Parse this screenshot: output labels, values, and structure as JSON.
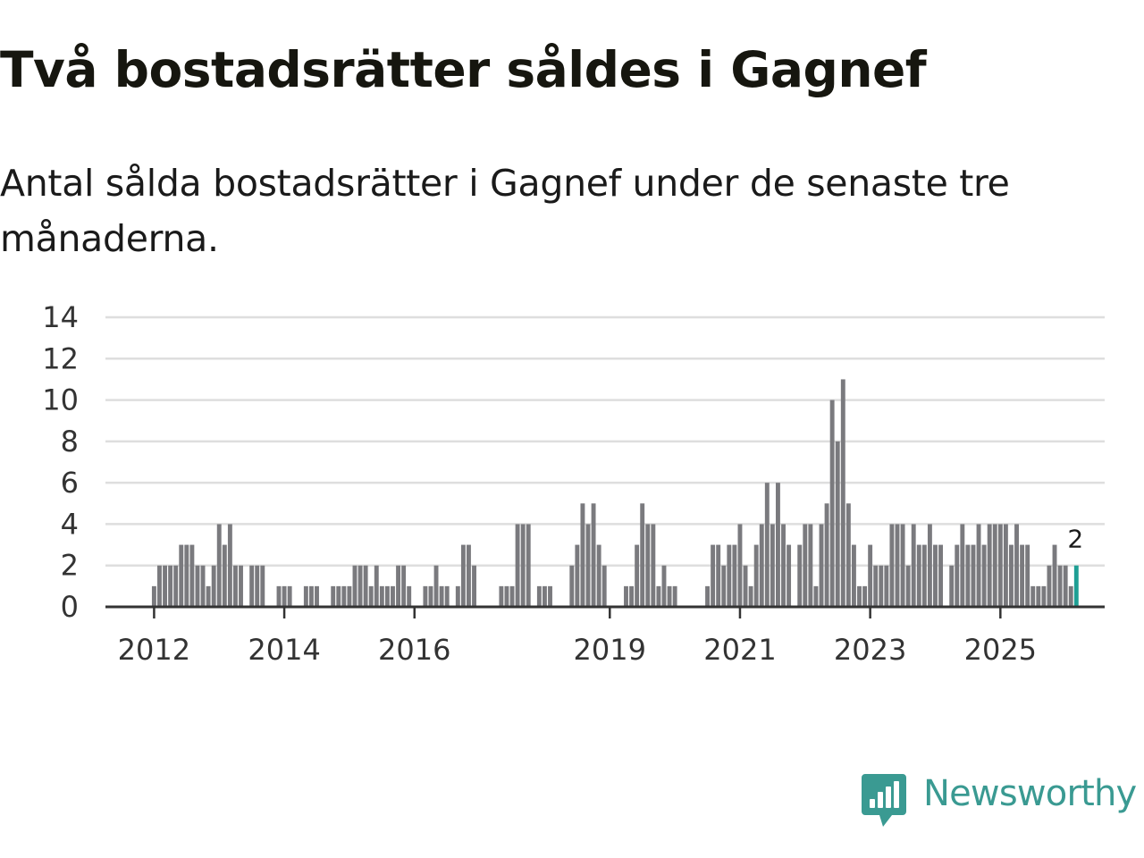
{
  "header": {
    "title": "Två bostadsrätter såldes i Gagnef",
    "subtitle": "Antal sålda bostadsrätter i Gagnef under de senaste tre månaderna."
  },
  "brand": {
    "name": "Newsworthy",
    "icon": "newsworthy-logo-icon",
    "color": "#3a9a92"
  },
  "colors": {
    "bar": "#7a7a7e",
    "highlight": "#1f9f94",
    "grid": "#dedede",
    "axis": "#333333"
  },
  "chart_data": {
    "type": "bar",
    "title": "Två bostadsrätter såldes i Gagnef",
    "subtitle": "Antal sålda bostadsrätter i Gagnef under de senaste tre månaderna.",
    "xlabel": "",
    "ylabel": "",
    "ylim": [
      0,
      14
    ],
    "yticks": [
      0,
      2,
      4,
      6,
      8,
      10,
      12,
      14
    ],
    "grid": true,
    "legend": "none",
    "x_start": "2012-01",
    "x_end": "2026-05",
    "xticks": [
      {
        "label": "2012",
        "period": "2012-01"
      },
      {
        "label": "2014",
        "period": "2014-01"
      },
      {
        "label": "2016",
        "period": "2016-01"
      },
      {
        "label": "2019",
        "period": "2019-01"
      },
      {
        "label": "2021",
        "period": "2021-01"
      },
      {
        "label": "2023",
        "period": "2023-01"
      },
      {
        "label": "2025",
        "period": "2025-01"
      }
    ],
    "series": [
      {
        "name": "Sålda bostadsrätter",
        "start": "2012-01",
        "frequency": "month",
        "values": [
          1,
          2,
          2,
          2,
          2,
          3,
          3,
          3,
          2,
          2,
          1,
          2,
          4,
          3,
          4,
          2,
          2,
          0,
          2,
          2,
          2,
          0,
          0,
          1,
          1,
          1,
          0,
          0,
          1,
          1,
          1,
          0,
          0,
          1,
          1,
          1,
          1,
          2,
          2,
          2,
          1,
          2,
          1,
          1,
          1,
          2,
          2,
          1,
          0,
          0,
          1,
          1,
          2,
          1,
          1,
          0,
          1,
          3,
          3,
          2,
          0,
          0,
          0,
          0,
          1,
          1,
          1,
          4,
          4,
          4,
          0,
          1,
          1,
          1,
          0,
          0,
          0,
          2,
          3,
          5,
          4,
          5,
          3,
          2,
          0,
          0,
          0,
          1,
          1,
          3,
          5,
          4,
          4,
          1,
          2,
          1,
          1,
          0,
          0,
          0,
          0,
          0,
          1,
          3,
          3,
          2,
          3,
          3,
          4,
          2,
          1,
          3,
          4,
          6,
          4,
          6,
          4,
          3,
          0,
          3,
          4,
          4,
          1,
          4,
          5,
          10,
          8,
          11,
          5,
          3,
          1,
          1,
          3,
          2,
          2,
          2,
          4,
          4,
          4,
          2,
          4,
          3,
          3,
          4,
          3,
          3,
          0,
          2,
          3,
          4,
          3,
          3,
          4,
          3,
          4,
          4,
          4,
          4,
          3,
          4,
          3,
          3,
          1,
          1,
          1,
          2,
          3,
          2,
          2,
          1,
          2
        ]
      }
    ],
    "highlight": {
      "period": "2026-03",
      "value": 2,
      "label": "2"
    }
  }
}
